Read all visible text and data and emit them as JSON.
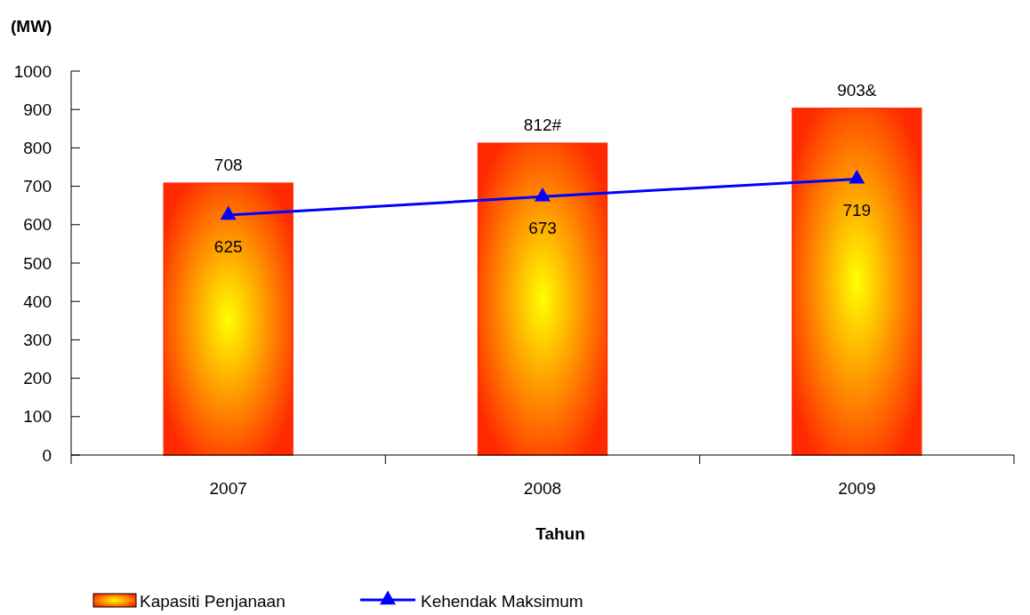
{
  "chart_data": {
    "type": "bar",
    "xlabel": "Tahun",
    "ylabel": "(MW)",
    "categories": [
      "2007",
      "2008",
      "2009"
    ],
    "series": [
      {
        "name": "Kapasiti Penjanaan",
        "color": "#ff2a00",
        "values": [
          708,
          812,
          903
        ],
        "value_labels": [
          "708",
          "812#",
          "903&"
        ]
      },
      {
        "name": "Kehendak Maksimum",
        "type": "line",
        "color": "#0000ff",
        "values": [
          625,
          673,
          719
        ],
        "value_labels": [
          "625",
          "673",
          "719"
        ],
        "marker": "triangle"
      }
    ],
    "ylim": [
      0,
      1000
    ],
    "yticks": [
      0,
      100,
      200,
      300,
      400,
      500,
      600,
      700,
      800,
      900,
      1000
    ],
    "grid": false,
    "legend": "bottom"
  }
}
